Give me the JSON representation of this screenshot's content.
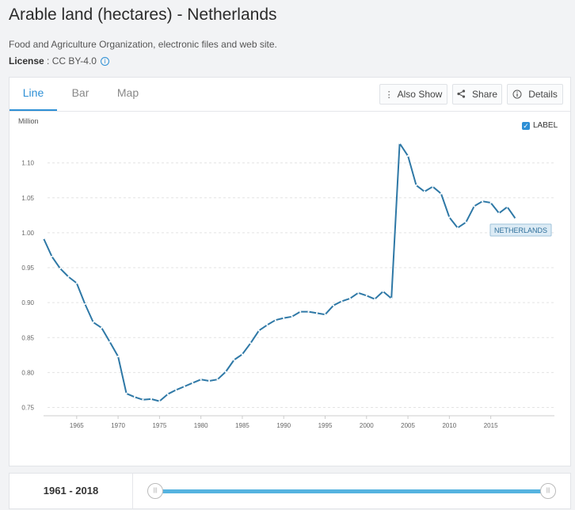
{
  "header": {
    "title": "Arable land (hectares) - Netherlands",
    "source": "Food and Agriculture Organization, electronic files and web site.",
    "license_label": "License",
    "license_value": " : CC BY-4.0"
  },
  "tabs": [
    {
      "label": "Line",
      "active": true
    },
    {
      "label": "Bar",
      "active": false
    },
    {
      "label": "Map",
      "active": false
    }
  ],
  "toolbar": {
    "also_show": "Also Show",
    "share": "Share",
    "details": "Details"
  },
  "label_toggle": {
    "label": "LABEL",
    "checked": true
  },
  "chart_data": {
    "type": "line",
    "unit": "Million",
    "ylim": [
      0.73,
      1.14
    ],
    "yticks": [
      "0.75",
      "0.80",
      "0.85",
      "0.90",
      "0.95",
      "1.00",
      "1.05",
      "1.10"
    ],
    "xticks": [
      "1965",
      "1970",
      "1975",
      "1980",
      "1985",
      "1990",
      "1995",
      "2000",
      "2005",
      "2010",
      "2015"
    ],
    "grid": true,
    "series": [
      {
        "name": "NETHERLANDS",
        "color": "#2e78a6",
        "x": [
          1961,
          1962,
          1963,
          1964,
          1965,
          1966,
          1967,
          1968,
          1969,
          1970,
          1971,
          1972,
          1973,
          1974,
          1975,
          1976,
          1977,
          1978,
          1979,
          1980,
          1981,
          1982,
          1983,
          1984,
          1985,
          1986,
          1987,
          1988,
          1989,
          1990,
          1991,
          1992,
          1993,
          1994,
          1995,
          1996,
          1997,
          1998,
          1999,
          2000,
          2001,
          2002,
          2003,
          2004,
          2005,
          2006,
          2007,
          2008,
          2009,
          2010,
          2011,
          2012,
          2013,
          2014,
          2015,
          2016,
          2017,
          2018
        ],
        "values": [
          0.992,
          0.966,
          0.949,
          0.937,
          0.928,
          0.898,
          0.872,
          0.864,
          0.844,
          0.823,
          0.77,
          0.765,
          0.761,
          0.762,
          0.759,
          0.769,
          0.775,
          0.78,
          0.785,
          0.79,
          0.788,
          0.79,
          0.801,
          0.818,
          0.826,
          0.842,
          0.86,
          0.868,
          0.875,
          0.878,
          0.88,
          0.887,
          0.887,
          0.885,
          0.883,
          0.896,
          0.902,
          0.906,
          0.914,
          0.91,
          0.905,
          0.916,
          0.906,
          1.128,
          1.11,
          1.068,
          1.059,
          1.066,
          1.056,
          1.022,
          1.007,
          1.015,
          1.038,
          1.045,
          1.043,
          1.028,
          1.037,
          1.02
        ]
      }
    ]
  },
  "range": {
    "label": "1961 - 2018",
    "start_year": 1961,
    "end_year": 2018
  }
}
